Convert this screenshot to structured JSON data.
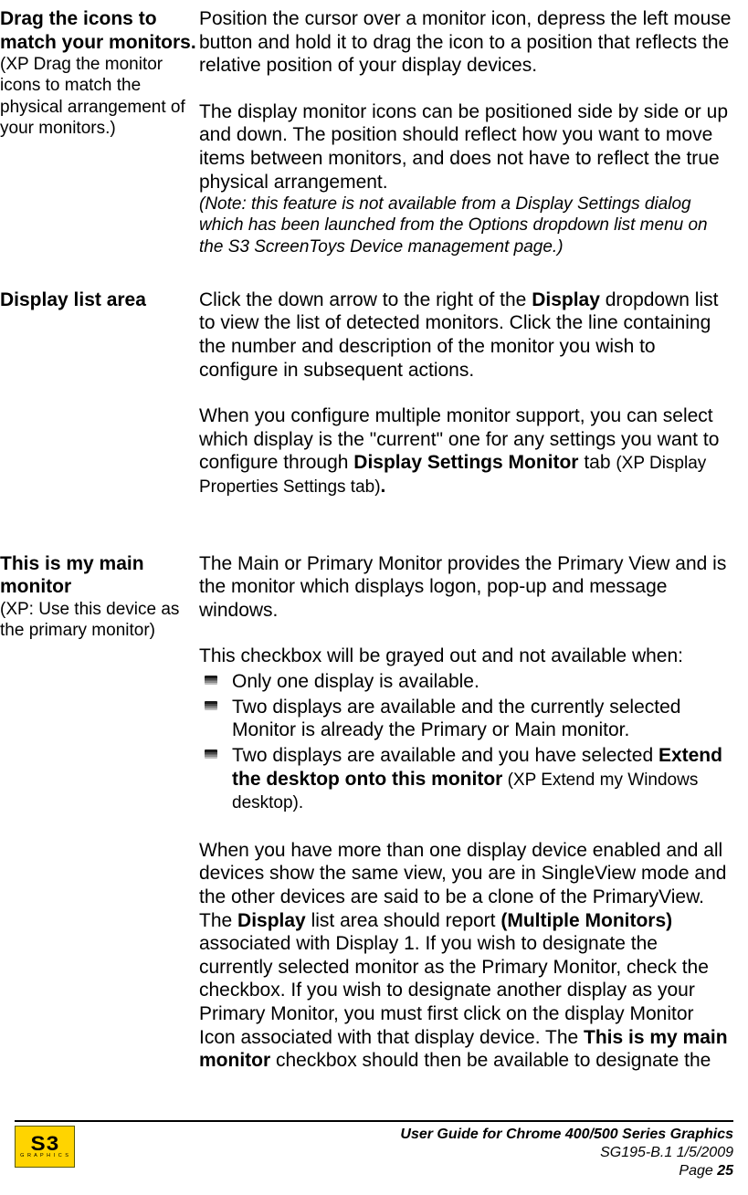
{
  "sections": [
    {
      "id": "drag-icons",
      "title": "Drag the icons to match your monitors.",
      "subtitle": "(XP Drag the monitor icons to match the physical arrangement of your monitors.)",
      "para1": "Position the cursor over a monitor icon, depress the left mouse button and hold it to drag the icon to a position that reflects the relative position of your display devices.",
      "para2": "The display monitor icons can be positioned side by side or up and down. The position should reflect how you want to move items between monitors, and does not have to reflect the true physical arrangement.",
      "note": "(Note: this feature is not available from a Display Settings dialog which has been launched from the Options dropdown list menu on the S3 ScreenToys Device management page.)"
    },
    {
      "id": "display-list",
      "title": "Display list area",
      "para1_a": "Click the down arrow to the right of the ",
      "para1_b": "Display",
      "para1_c": " dropdown list to view the list of detected monitors. Click the line containing the number and description of the monitor you wish to configure in subsequent actions.",
      "para2_a": "When you configure multiple monitor support, you can select which display is the \"current\" one for any settings you want to configure through ",
      "para2_b": "Display Settings Monitor",
      "para2_c": " tab ",
      "para2_d": "(XP Display Properties Settings tab)",
      "para2_e": "."
    },
    {
      "id": "main-monitor",
      "title": "This is my main monitor",
      "subtitle": "(XP: Use this device as the primary monitor)",
      "para1": "The Main or Primary Monitor provides the Primary View and is the monitor which displays logon, pop-up and message windows.",
      "para2": "This checkbox will be grayed out and not available when:",
      "bullets": {
        "b1": "Only one display is available.",
        "b2": "Two displays are available and the currently selected Monitor is already the Primary or Main monitor.",
        "b3_a": "Two displays are available and you have selected ",
        "b3_b": "Extend the desktop onto this monitor",
        "b3_c": " (XP Extend my Windows desktop).",
        "b3_tail": "(XP Extend my Windows desktop)."
      },
      "para3_a": "When you have more than one display device enabled and all devices show the same view, you are in SingleView mode and the other devices are said to be a clone of the PrimaryView. The ",
      "para3_b": "Display",
      "para3_c": " list area should report ",
      "para3_d": "(Multiple Monitors)",
      "para3_e": " associated with Display 1. If you wish to designate the currently selected monitor as the Primary Monitor, check the checkbox. If you wish to designate another display as your Primary Monitor, you must first click on the display Monitor Icon associated with that display device. The ",
      "para3_f": "This is my main monitor",
      "para3_g": " checkbox should then be available to designate the"
    }
  ],
  "footer": {
    "logo_main": "S3",
    "logo_sub": "G R A P H I C S",
    "title": "User Guide for Chrome 400/500 Series Graphics",
    "doc": "SG195-B.1   1/5/2009",
    "page_label": "Page ",
    "page_num": "25"
  },
  "colors": {
    "text": "#000000",
    "background": "#ffffff",
    "logo_bg": "#ffd400",
    "rule": "#000000"
  }
}
